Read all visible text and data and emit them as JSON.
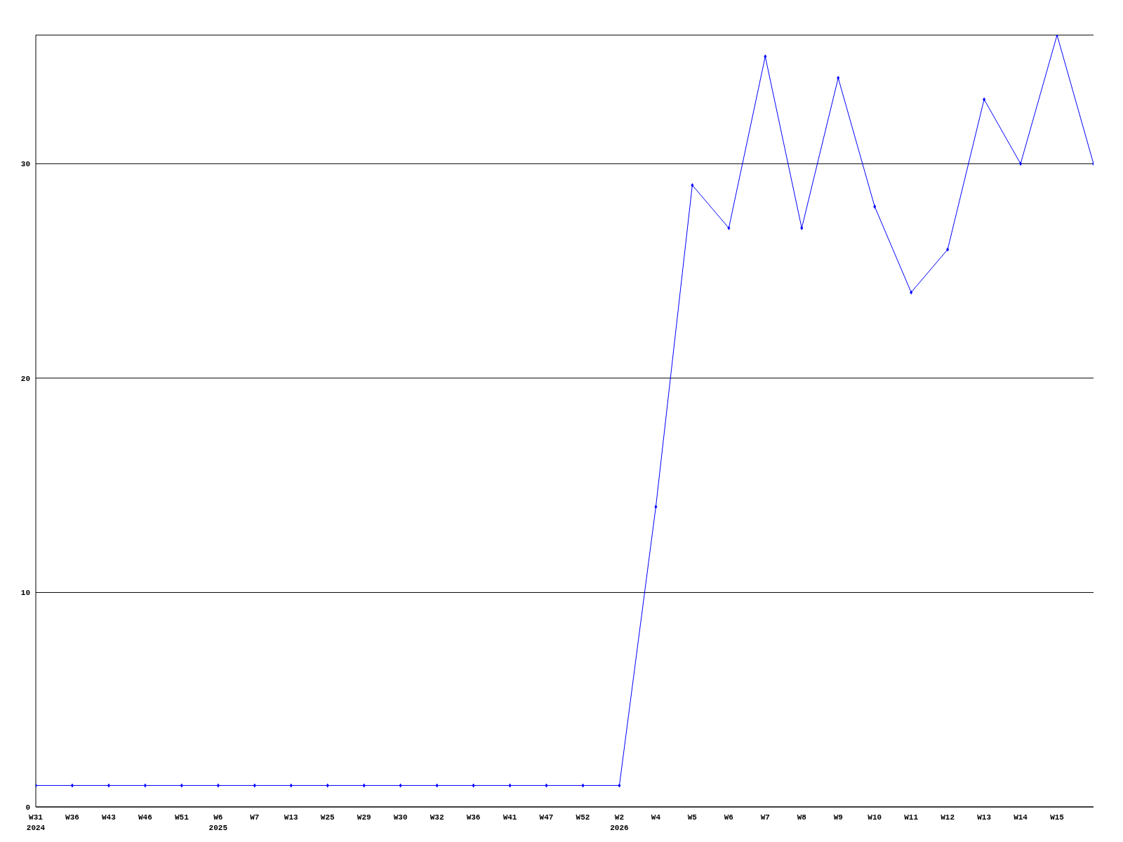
{
  "chart_data": {
    "type": "line",
    "categories": [
      "W31\n2024",
      "W36",
      "W43",
      "W46",
      "W51",
      "W6\n2025",
      "W7",
      "W13",
      "W25",
      "W29",
      "W30",
      "W32",
      "W36",
      "W41",
      "W47",
      "W52",
      "W2\n2026",
      "W4",
      "W5",
      "W6",
      "W7",
      "W8",
      "W9",
      "W10",
      "W11",
      "W12",
      "W13",
      "W14",
      "W15",
      null
    ],
    "series": [
      {
        "color": "#0000ff",
        "values": [
          1,
          1,
          1,
          1,
          1,
          1,
          1,
          1,
          1,
          1,
          1,
          1,
          1,
          1,
          1,
          1,
          1,
          14,
          29,
          27,
          35,
          27,
          34,
          28,
          24,
          26,
          33,
          30,
          36,
          30
        ]
      }
    ],
    "ylim": [
      0,
      36
    ],
    "yticks": [
      0,
      10,
      20,
      30
    ],
    "grid": "y",
    "legend": false,
    "marker": "diamond",
    "line_style": "solid"
  }
}
